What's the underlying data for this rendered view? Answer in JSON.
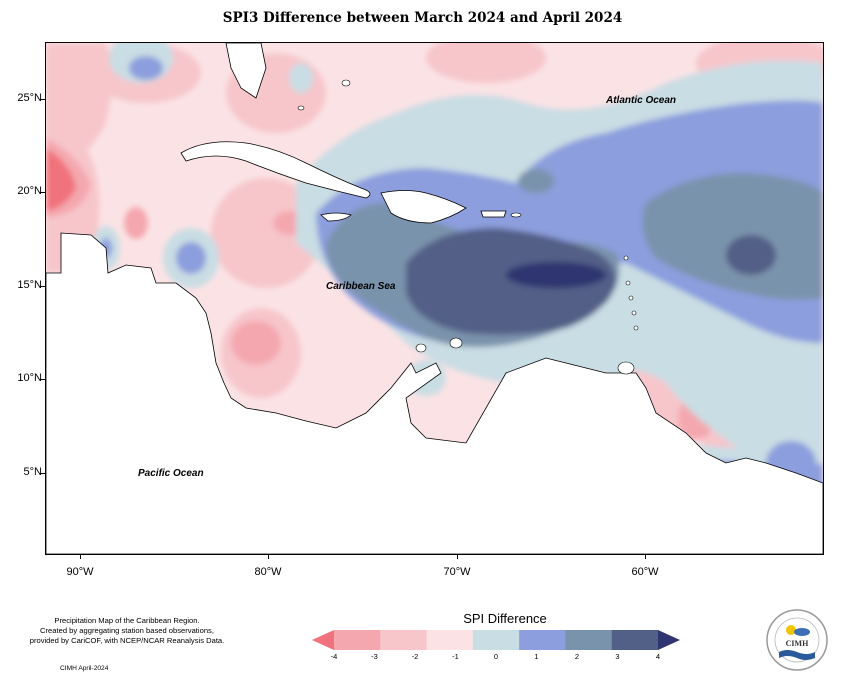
{
  "title": "SPI3 Difference between March 2024 and April 2024",
  "labels": {
    "atlantic": "Atlantic Ocean",
    "caribbean": "Caribbean Sea",
    "pacific": "Pacific Ocean"
  },
  "lat_ticks": [
    "25°N",
    "20°N",
    "15°N",
    "10°N",
    "5°N"
  ],
  "lon_ticks": [
    "90°W",
    "80°W",
    "70°W",
    "60°W"
  ],
  "footnote": {
    "line1": "Precipitation Map of the Caribbean Region.",
    "line2": "Created by aggregating station based observations,",
    "line3": "provided by CariCOF, with NCEP/NCAR Reanalysis Data.",
    "credit": "CIMH April-2024"
  },
  "legend": {
    "title": "SPI Difference",
    "ticks": [
      "-4",
      "-3",
      "-2",
      "-1",
      "0",
      "1",
      "2",
      "3",
      "4"
    ],
    "colors": [
      "#f0727c",
      "#f4a7ae",
      "#f6c6cb",
      "#fbe3e5",
      "#c9dde4",
      "#8c9edd",
      "#7a93ac",
      "#525f87",
      "#2f3570"
    ]
  },
  "logo": {
    "text": "CIMH",
    "ring_text": "Caribbean Institute for Meteorology and Hydrology",
    "colors": {
      "sun": "#f2c500",
      "cloud": "#3d6fb6",
      "water": "#2a5a9c"
    }
  }
}
